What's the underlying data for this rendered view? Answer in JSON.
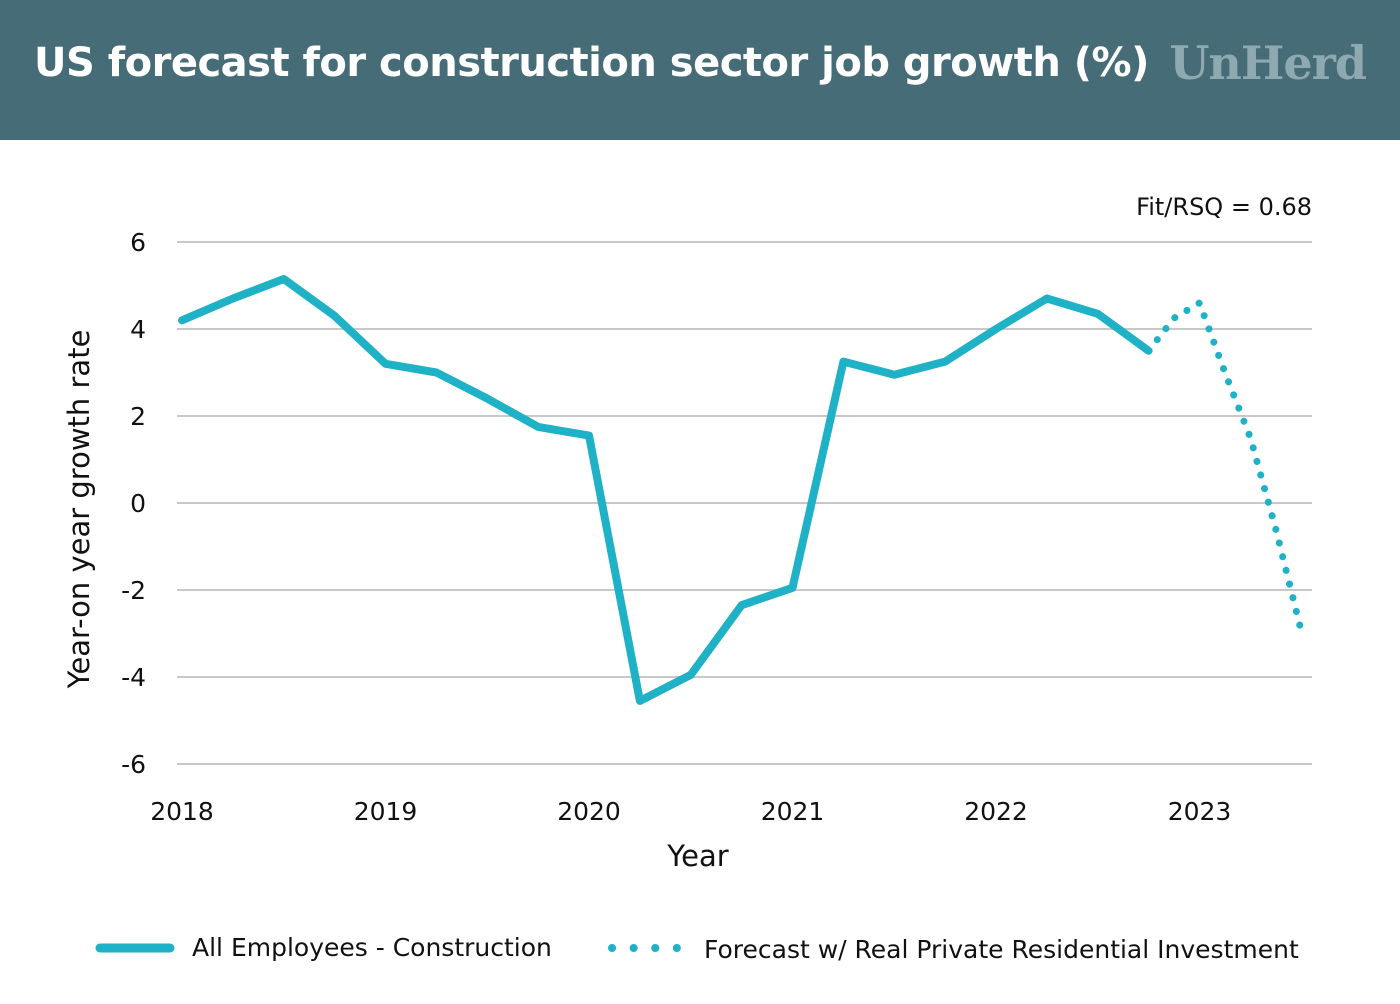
{
  "header": {
    "title": "US forecast for construction sector job growth (%)",
    "logo": "UnHerd"
  },
  "colors": {
    "header_bg": "#466c77",
    "series": "#1fb1c6",
    "grid": "#c8c8c8",
    "logo": "#8fa9b1"
  },
  "chart_data": {
    "type": "line",
    "title": "US forecast for construction sector job growth (%)",
    "xlabel": "Year",
    "ylabel": "Year-on year growth rate",
    "xlim": [
      2018,
      2023.55
    ],
    "ylim": [
      -6,
      6
    ],
    "x_ticks": [
      2018,
      2019,
      2020,
      2021,
      2022,
      2023
    ],
    "y_ticks": [
      6,
      4,
      2,
      0,
      -2,
      -4,
      -6
    ],
    "grid": true,
    "legend_position": "bottom",
    "annotation": "Fit/RSQ = 0.68",
    "series": [
      {
        "name": "All Employees - Construction",
        "style": "solid",
        "x": [
          2018.0,
          2018.25,
          2018.5,
          2018.75,
          2019.0,
          2019.25,
          2019.5,
          2019.75,
          2020.0,
          2020.25,
          2020.5,
          2020.75,
          2021.0,
          2021.25,
          2021.5,
          2021.75,
          2022.0,
          2022.25,
          2022.5,
          2022.75
        ],
        "y": [
          4.2,
          4.7,
          5.15,
          4.3,
          3.2,
          3.0,
          2.4,
          1.75,
          1.55,
          -4.55,
          -3.95,
          -2.35,
          -1.95,
          3.25,
          2.95,
          3.25,
          4.0,
          4.7,
          4.35,
          3.5
        ]
      },
      {
        "name": "Forecast w/ Real Private Residential Investment",
        "style": "dotted",
        "x": [
          2022.75,
          2022.875,
          2023.0,
          2023.125,
          2023.25,
          2023.375,
          2023.5
        ],
        "y": [
          3.5,
          4.25,
          4.6,
          3.0,
          1.5,
          -0.6,
          -2.95
        ]
      }
    ]
  }
}
